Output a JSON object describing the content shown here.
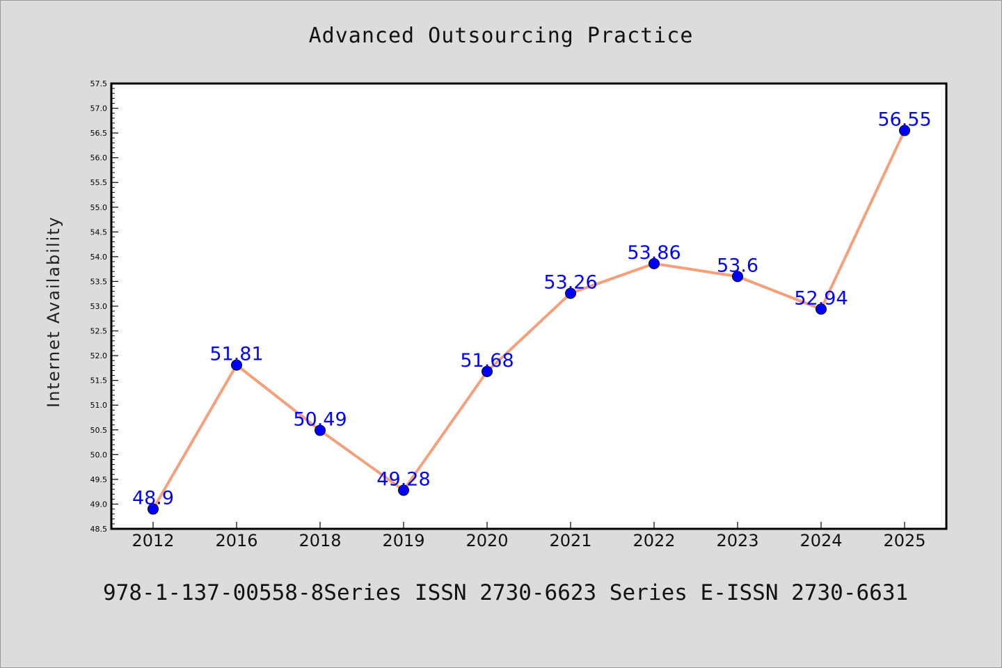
{
  "chart_data": {
    "type": "line",
    "title": "Advanced Outsourcing Practice",
    "xlabel": "",
    "ylabel": "Internet Availability",
    "categories": [
      "2012",
      "2016",
      "2018",
      "2019",
      "2020",
      "2021",
      "2022",
      "2023",
      "2024",
      "2025"
    ],
    "series": [
      {
        "values": [
          48.9,
          51.81,
          50.49,
          49.28,
          51.68,
          53.26,
          53.86,
          53.6,
          52.94,
          56.55
        ],
        "data_labels": [
          "48.9",
          "51.81",
          "50.49",
          "49.28",
          "51.68",
          "53.26",
          "53.86",
          "53.6",
          "52.94",
          "56.55"
        ]
      }
    ],
    "ylim": [
      48.5,
      57.5
    ],
    "yticks": [
      "48.5",
      "49.0",
      "49.5",
      "50.0",
      "50.5",
      "51.0",
      "51.5",
      "52.0",
      "52.5",
      "53.0",
      "53.5",
      "54.0",
      "54.5",
      "55.0",
      "55.5",
      "56.0",
      "56.5",
      "57.0",
      "57.5"
    ],
    "grid": false,
    "colors": {
      "line": "#f4a07a",
      "marker": "#0000ff",
      "label": "#0000ff",
      "plot_background": "#ffffff",
      "figure_background": "#dcdcdc"
    }
  },
  "footer": {
    "text": "978-1-137-00558-8Series ISSN 2730-6623 Series E-ISSN 2730-6631"
  }
}
